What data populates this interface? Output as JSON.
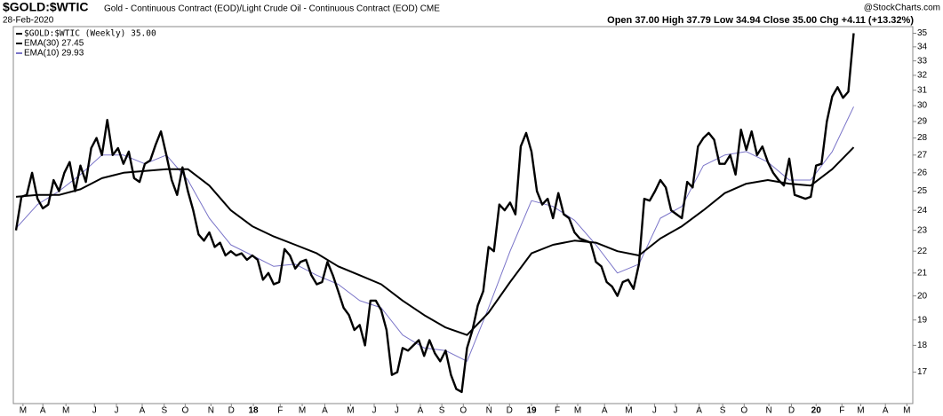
{
  "chart_data": {
    "type": "line",
    "title": "$GOLD:$WTIC",
    "subtitle": "Gold - Continuous Contract (EOD)/Light Crude Oil - Continuous Contract (EOD) CME",
    "date": "28-Feb-2020",
    "quote": "Open 37.00  High 37.79  Low 34.94  Close 35.00  Chg +4.11 (+13.32%)",
    "source": "@StockCharts.com",
    "log_scale": true,
    "grid": false,
    "legend": "upper left",
    "xlim": [
      -0.5,
      167
    ],
    "xticks": [
      {
        "value": 1.3,
        "label": "M"
      },
      {
        "value": 5.0,
        "label": "A"
      },
      {
        "value": 9.3,
        "label": "M"
      },
      {
        "value": 14.6,
        "label": "J"
      },
      {
        "value": 18.7,
        "label": "J"
      },
      {
        "value": 23.5,
        "label": "A"
      },
      {
        "value": 27.6,
        "label": "S"
      },
      {
        "value": 31.5,
        "label": "O"
      },
      {
        "value": 36.3,
        "label": "N"
      },
      {
        "value": 40.1,
        "label": "D"
      },
      {
        "value": 44.2,
        "label": "18"
      },
      {
        "value": 49.2,
        "label": "F"
      },
      {
        "value": 53.3,
        "label": "M"
      },
      {
        "value": 57.5,
        "label": "A"
      },
      {
        "value": 62.3,
        "label": "M"
      },
      {
        "value": 66.7,
        "label": "J"
      },
      {
        "value": 70.9,
        "label": "J"
      },
      {
        "value": 75.3,
        "label": "A"
      },
      {
        "value": 79.3,
        "label": "S"
      },
      {
        "value": 83.3,
        "label": "O"
      },
      {
        "value": 88.1,
        "label": "N"
      },
      {
        "value": 91.9,
        "label": "D"
      },
      {
        "value": 96.0,
        "label": "19"
      },
      {
        "value": 100.8,
        "label": "F"
      },
      {
        "value": 104.6,
        "label": "M"
      },
      {
        "value": 109.6,
        "label": "A"
      },
      {
        "value": 114.1,
        "label": "M"
      },
      {
        "value": 118.9,
        "label": "J"
      },
      {
        "value": 122.8,
        "label": "J"
      },
      {
        "value": 127.2,
        "label": "A"
      },
      {
        "value": 131.6,
        "label": "S"
      },
      {
        "value": 135.6,
        "label": "O"
      },
      {
        "value": 140.2,
        "label": "N"
      },
      {
        "value": 144.4,
        "label": "D"
      },
      {
        "value": 149.0,
        "label": "20"
      },
      {
        "value": 153.8,
        "label": "F"
      },
      {
        "value": 157.3,
        "label": "M"
      },
      {
        "value": 161.9,
        "label": "A"
      },
      {
        "value": 165.9,
        "label": "M"
      }
    ],
    "ylim": [
      15.9,
      35.5
    ],
    "yticks": [
      17,
      18,
      19,
      20,
      21,
      22,
      23,
      24,
      25,
      26,
      27,
      28,
      29,
      30,
      31,
      32,
      33,
      34,
      35
    ],
    "series": [
      {
        "name": "$GOLD:$WTIC (Weekly) 35.00",
        "color": "#000000",
        "width": 2.4,
        "values": [
          23.0,
          24.7,
          24.8,
          26.0,
          24.6,
          24.1,
          24.3,
          25.6,
          25.0,
          26.0,
          26.6,
          25.0,
          26.4,
          25.5,
          27.4,
          28.0,
          27.0,
          29.1,
          27.0,
          27.4,
          26.5,
          27.2,
          25.7,
          25.5,
          26.5,
          26.7,
          27.6,
          28.4,
          27.0,
          25.6,
          24.8,
          26.3,
          25.0,
          24.0,
          22.8,
          22.5,
          22.9,
          22.2,
          22.4,
          21.8,
          22.0,
          21.8,
          21.9,
          21.6,
          21.8,
          21.6,
          20.7,
          21.0,
          20.5,
          20.6,
          22.1,
          21.8,
          21.2,
          21.5,
          21.6,
          20.9,
          20.5,
          20.6,
          21.5,
          20.9,
          20.2,
          19.5,
          19.2,
          18.6,
          18.8,
          18.0,
          19.8,
          19.8,
          19.4,
          18.6,
          16.9,
          17.0,
          17.9,
          17.8,
          18.0,
          18.2,
          17.6,
          18.2,
          17.7,
          17.4,
          17.8,
          16.9,
          16.4,
          16.3,
          17.9,
          18.6,
          19.6,
          20.2,
          22.2,
          22.0,
          24.3,
          24.0,
          24.4,
          23.8,
          27.5,
          28.3,
          27.2,
          25.0,
          24.3,
          24.6,
          23.6,
          24.9,
          23.8,
          23.6,
          22.9,
          22.6,
          22.5,
          22.4,
          21.5,
          21.3,
          20.6,
          20.4,
          20.0,
          20.6,
          20.7,
          20.3,
          21.4,
          24.6,
          24.5,
          25.0,
          25.6,
          25.2,
          24.0,
          23.8,
          23.6,
          25.5,
          25.2,
          27.5,
          28.0,
          28.3,
          27.9,
          26.5,
          26.5,
          27.0,
          25.9,
          28.5,
          27.3,
          28.4,
          27.0,
          27.5,
          26.6,
          26.0,
          25.6,
          25.3,
          26.8,
          24.8,
          24.7,
          24.6,
          24.7,
          26.4,
          26.5,
          29.0,
          30.6,
          31.2,
          30.5,
          30.9,
          35.0
        ]
      },
      {
        "name": "EMA(30) 27.45",
        "color": "#000000",
        "width": 2,
        "x": [
          0,
          4,
          8,
          12,
          16,
          20,
          24,
          28,
          32,
          36,
          40,
          44,
          48,
          52,
          56,
          60,
          64,
          68,
          72,
          76,
          80,
          84,
          88,
          92,
          96,
          100,
          104,
          108,
          112,
          116,
          120,
          124,
          128,
          132,
          136,
          140,
          144,
          148,
          152,
          156
        ],
        "values": [
          24.7,
          24.8,
          24.8,
          25.1,
          25.7,
          26.0,
          26.1,
          26.2,
          26.2,
          25.3,
          24.0,
          23.2,
          22.7,
          22.3,
          21.9,
          21.3,
          20.9,
          20.5,
          19.8,
          19.2,
          18.7,
          18.4,
          19.3,
          20.6,
          21.9,
          22.3,
          22.5,
          22.4,
          22.0,
          21.8,
          22.6,
          23.2,
          24.0,
          24.9,
          25.4,
          25.6,
          25.4,
          25.3,
          26.2,
          27.45
        ]
      },
      {
        "name": "EMA(10) 29.93",
        "color": "#7a74c8",
        "width": 1,
        "x": [
          0,
          4,
          8,
          12,
          16,
          20,
          24,
          28,
          32,
          36,
          40,
          44,
          48,
          52,
          56,
          60,
          64,
          68,
          72,
          76,
          80,
          84,
          88,
          92,
          96,
          100,
          104,
          108,
          112,
          116,
          120,
          124,
          128,
          132,
          136,
          140,
          144,
          148,
          152,
          156
        ],
        "values": [
          23.1,
          24.3,
          25.0,
          25.9,
          27.0,
          27.0,
          26.5,
          27.0,
          25.6,
          23.6,
          22.3,
          21.8,
          21.3,
          21.4,
          20.9,
          20.5,
          19.8,
          19.5,
          18.4,
          17.9,
          17.8,
          17.4,
          19.5,
          22.0,
          24.5,
          24.2,
          23.5,
          22.3,
          21.0,
          21.4,
          23.6,
          24.2,
          26.4,
          27.0,
          27.2,
          26.6,
          25.6,
          25.6,
          27.2,
          29.93
        ]
      }
    ]
  }
}
